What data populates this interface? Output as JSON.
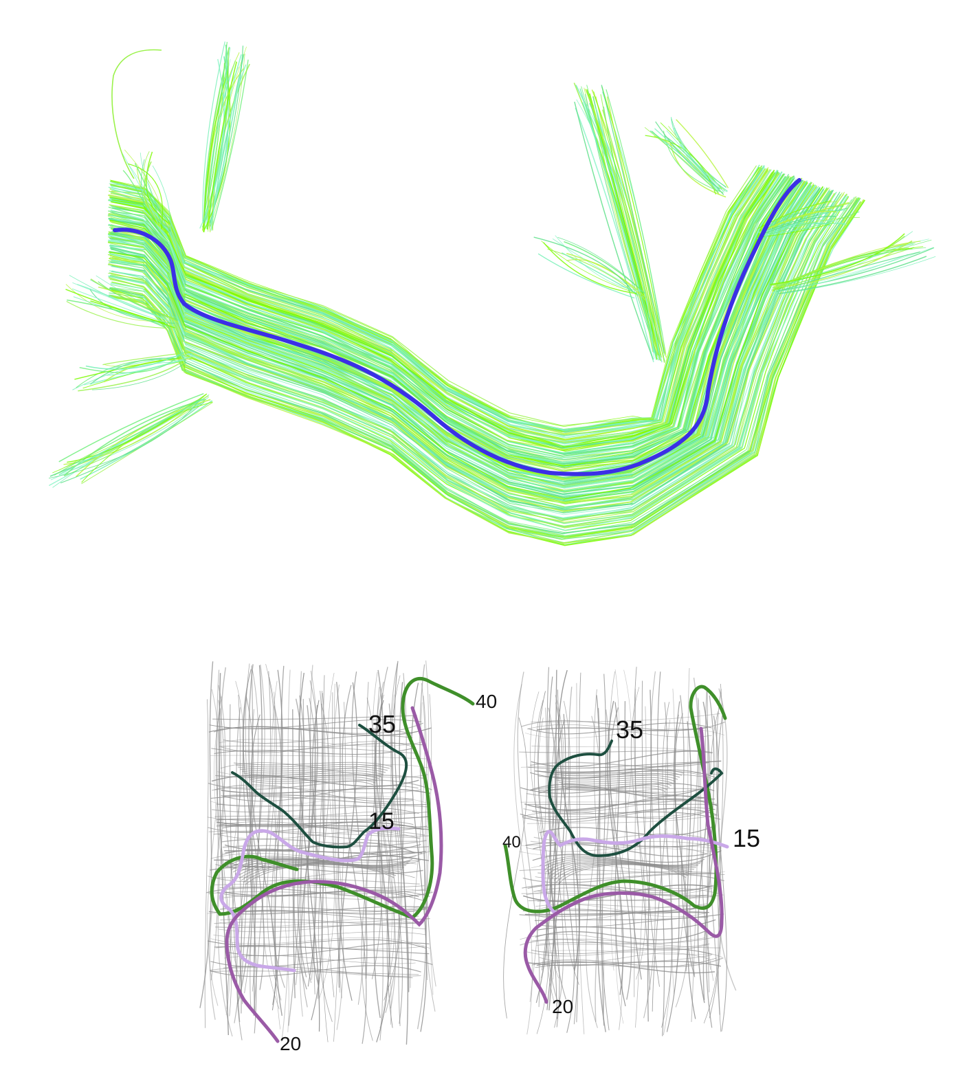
{
  "top_panel": {
    "fiber_colors": [
      "#7CFC00",
      "#9AF24A",
      "#6FEF7A",
      "#74F0B6",
      "#8CF5C8",
      "#B7F542",
      "#5EE08A"
    ],
    "centerline_color": "#3B2FE6"
  },
  "bottom_panel": {
    "background_fiber_color": "#8a8a8a",
    "left_view": {
      "labels": {
        "l40": "40",
        "l35": "35",
        "l15": "15",
        "l20": "20"
      }
    },
    "right_view": {
      "labels": {
        "l35": "35",
        "l40": "40",
        "l15": "15",
        "l20": "20"
      }
    },
    "path_colors": {
      "c40": "#3F8F2A",
      "c35": "#1E4F40",
      "c15": "#C9A8E8",
      "c20": "#9A5AA6"
    }
  }
}
